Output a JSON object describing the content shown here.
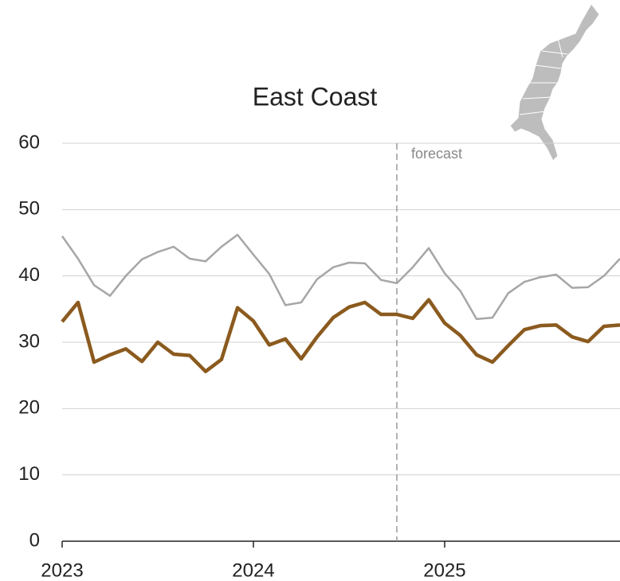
{
  "chart_data": {
    "type": "line",
    "title": "East Coast",
    "x": [
      2023,
      2023.083,
      2023.167,
      2023.25,
      2023.333,
      2023.417,
      2023.5,
      2023.583,
      2023.667,
      2023.75,
      2023.833,
      2023.917,
      2024,
      2024.083,
      2024.167,
      2024.25,
      2024.333,
      2024.417,
      2024.5,
      2024.583,
      2024.667,
      2024.75,
      2024.833,
      2024.917,
      2025,
      2025.083,
      2025.167,
      2025.25,
      2025.333,
      2025.417,
      2025.5,
      2025.583,
      2025.667,
      2025.75,
      2025.833,
      2025.917
    ],
    "series": [
      {
        "color": "#a6a6a6",
        "values": [
          46.0,
          42.6,
          38.6,
          37.0,
          40.0,
          42.5,
          43.6,
          44.4,
          42.6,
          42.2,
          44.4,
          46.2,
          43.2,
          40.3,
          35.6,
          36.0,
          39.5,
          41.3,
          42.0,
          41.9,
          39.4,
          38.9,
          41.3,
          44.2,
          40.4,
          37.7,
          33.5,
          33.7,
          37.4,
          39.1,
          39.8,
          40.2,
          38.2,
          38.3,
          40.0,
          42.6
        ]
      },
      {
        "color": "#8b5a1e",
        "values": [
          33.1,
          36.0,
          27.0,
          28.1,
          29.0,
          27.1,
          30.0,
          28.2,
          28.0,
          25.6,
          27.4,
          35.2,
          33.2,
          29.6,
          30.5,
          27.5,
          30.8,
          33.7,
          35.3,
          36.0,
          34.2,
          34.2,
          33.6,
          36.4,
          32.9,
          31.0,
          28.1,
          27.0,
          29.5,
          31.9,
          32.5,
          32.6,
          30.8,
          30.1,
          32.4,
          32.6
        ]
      }
    ],
    "xlim": [
      2023,
      2025.917
    ],
    "xticks": [
      2023,
      2024,
      2025
    ],
    "ylim": [
      0,
      60
    ],
    "yticks": [
      0,
      10,
      20,
      30,
      40,
      50,
      60
    ],
    "grid": true,
    "annotations": [
      {
        "text": "forecast",
        "x": 2024.75
      }
    ]
  }
}
